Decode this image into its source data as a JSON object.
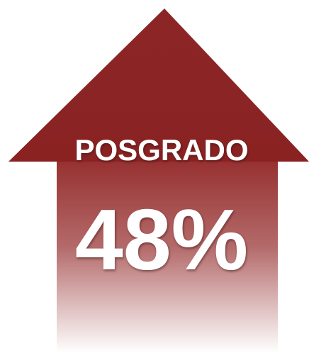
{
  "arrow": {
    "label": "POSGRADO",
    "value": "48%"
  }
}
